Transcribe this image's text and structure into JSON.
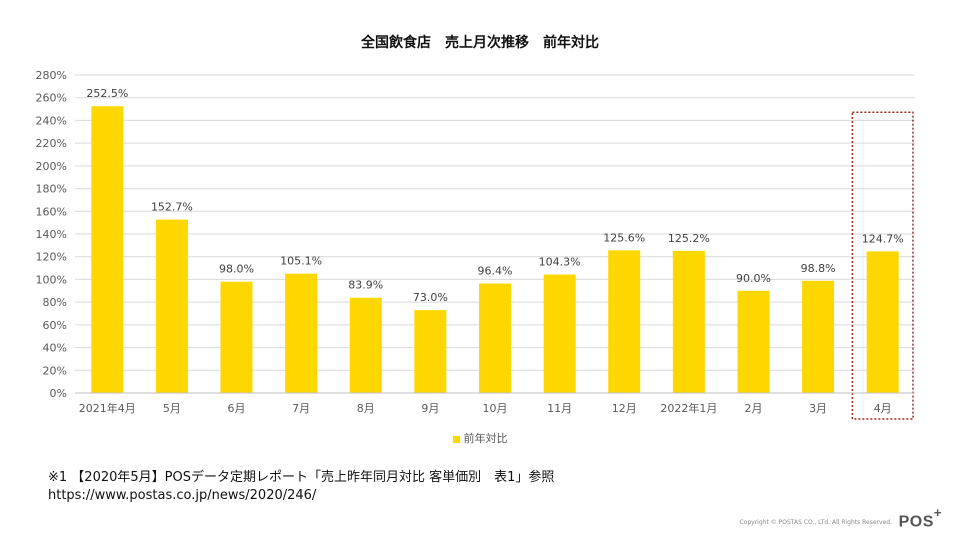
{
  "chart_data": {
    "type": "bar",
    "title": "全国飲食店　売上月次推移　前年対比",
    "categories": [
      "2021年4月",
      "5月",
      "6月",
      "7月",
      "8月",
      "9月",
      "10月",
      "11月",
      "12月",
      "2022年1月",
      "2月",
      "3月",
      "4月"
    ],
    "series": [
      {
        "name": "前年対比",
        "values": [
          252.5,
          152.7,
          98.0,
          105.1,
          83.9,
          73.0,
          96.4,
          104.3,
          125.6,
          125.2,
          90.0,
          98.8,
          124.7
        ],
        "labels": [
          "252.5%",
          "152.7%",
          "98.0%",
          "105.1%",
          "83.9%",
          "73.0%",
          "96.4%",
          "104.3%",
          "125.6%",
          "125.2%",
          "90.0%",
          "98.8%",
          "124.7%"
        ]
      }
    ],
    "ylim": [
      0,
      280
    ],
    "yticks": [
      "0%",
      "20%",
      "40%",
      "60%",
      "80%",
      "100%",
      "120%",
      "140%",
      "160%",
      "180%",
      "200%",
      "220%",
      "240%",
      "260%",
      "280%"
    ],
    "grid": true,
    "legend_position": "bottom",
    "highlighted_category": "4月"
  },
  "colors": {
    "bar": "#FFD700",
    "grid": "#d9d9d9",
    "highlight_border": "#A0291E"
  },
  "footnote": {
    "line1": "※1 【2020年5月】POSデータ定期レポート「売上昨年同月対比 客単価別　表1」参照",
    "line2": "https://www.postas.co.jp/news/2020/246/"
  },
  "copyright": "Copyright © POSTAS CO., LTd. All Rights Reserved.",
  "logo": {
    "text": "POS",
    "mark": "+"
  }
}
